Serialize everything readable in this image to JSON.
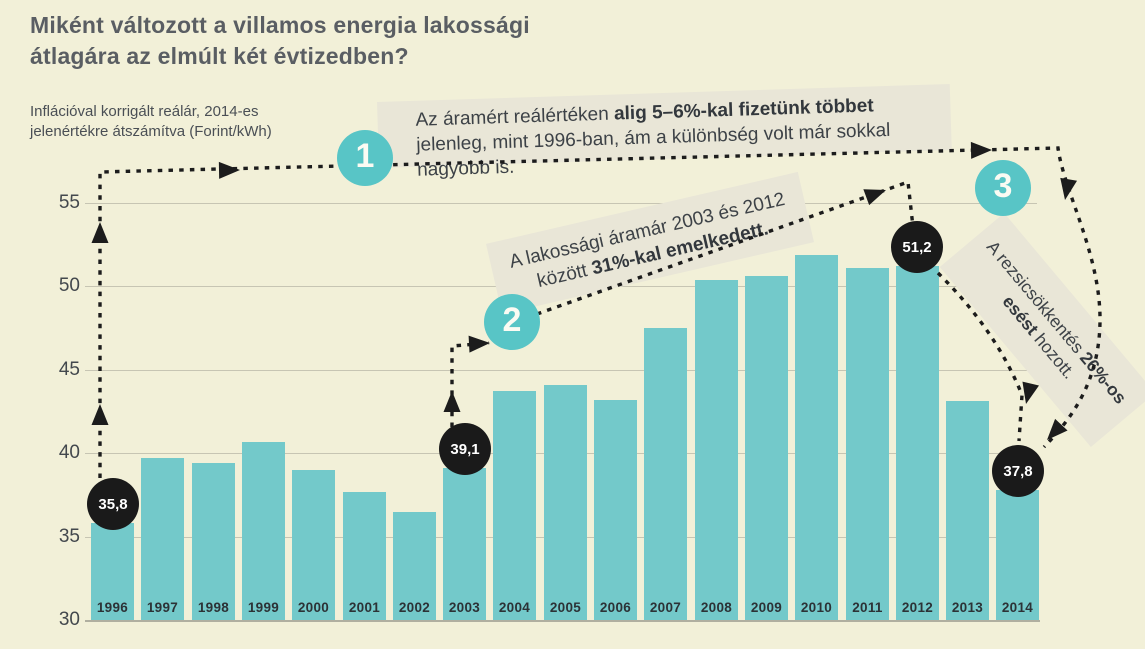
{
  "title": "Miként változott a villamos energia lakossági átlagára az elmúlt két évtizedben?",
  "subtitle": "Inflációval korrigált reálár, 2014-es jelenértékre átszámítva (Forint/kWh)",
  "colors": {
    "background": "#f2f0d8",
    "bar": "#73c9ca",
    "badge_teal": "#58c5c6",
    "marker_black": "#1a1a1a",
    "annotation_band": "#e9e6d7",
    "title_text": "#5a5e63",
    "body_text": "#3d4247",
    "gridline": "#c7c5b3"
  },
  "annotations": {
    "step1": {
      "number": "1",
      "pre": "Az áramért reálértéken ",
      "bold": "alig 5–6%-kal fizetünk többet",
      "post": " jelenleg, mint 1996-ban, ám a különbség volt már sokkal nagyobb is."
    },
    "step2": {
      "number": "2",
      "pre": "A lakossági áramár 2003 és 2012 között ",
      "bold": "31%-kal emelkedett.",
      "post": ""
    },
    "step3": {
      "number": "3",
      "pre": "A rezsicsökkentés ",
      "bold": "26%-os esést",
      "post": " hozott."
    }
  },
  "chart_data": {
    "type": "bar",
    "title": "Miként változott a villamos energia lakossági átlagára az elmúlt két évtizedben?",
    "subtitle": "Inflációval korrigált reálár, 2014-es jelenértékre átszámítva (Forint/kWh)",
    "xlabel": "",
    "ylabel": "Forint/kWh",
    "categories": [
      "1996",
      "1997",
      "1998",
      "1999",
      "2000",
      "2001",
      "2002",
      "2003",
      "2004",
      "2005",
      "2006",
      "2007",
      "2008",
      "2009",
      "2010",
      "2011",
      "2012",
      "2013",
      "2014"
    ],
    "values": [
      35.8,
      39.7,
      39.4,
      40.7,
      39.0,
      37.7,
      36.5,
      39.1,
      43.7,
      44.1,
      43.2,
      47.5,
      50.4,
      50.6,
      51.9,
      51.1,
      51.2,
      43.1,
      37.8
    ],
    "ylim": [
      30,
      55
    ],
    "yticks": [
      30,
      35,
      40,
      45,
      50,
      55
    ],
    "grid": true,
    "legend": false,
    "markers": [
      {
        "category": "1996",
        "label": "35,8"
      },
      {
        "category": "2003",
        "label": "39,1"
      },
      {
        "category": "2012",
        "label": "51,2"
      },
      {
        "category": "2014",
        "label": "37,8"
      }
    ]
  }
}
